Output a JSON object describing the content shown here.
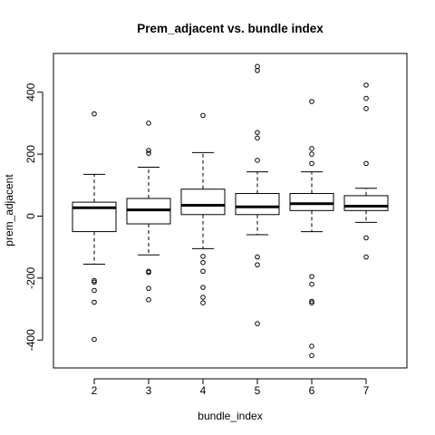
{
  "chart_data": {
    "type": "boxplot",
    "title": "Prem_adjacent vs. bundle index",
    "xlabel": "bundle_index",
    "ylabel": "prem_adjacent",
    "categories": [
      "2",
      "3",
      "4",
      "5",
      "6",
      "7"
    ],
    "ylim": [
      -490,
      525
    ],
    "yticks": [
      -400,
      -200,
      0,
      200,
      400
    ],
    "ytick_labels": [
      "-400",
      "-200",
      "0",
      "200",
      "400"
    ],
    "grid": false,
    "legend": "none",
    "colors": {
      "stroke": "#000000",
      "background": "#ffffff"
    },
    "boxes": [
      {
        "category": "2",
        "whisker_low": -155,
        "q1": -50,
        "median": 27,
        "q3": 45,
        "whisker_high": 135,
        "outliers": [
          330,
          -208,
          -213,
          -240,
          -278,
          -398
        ]
      },
      {
        "category": "3",
        "whisker_low": -125,
        "q1": -25,
        "median": 20,
        "q3": 57,
        "whisker_high": 158,
        "outliers": [
          300,
          212,
          203,
          -178,
          -182,
          -233,
          -270
        ]
      },
      {
        "category": "4",
        "whisker_low": -105,
        "q1": 5,
        "median": 35,
        "q3": 87,
        "whisker_high": 205,
        "outliers": [
          325,
          -130,
          -150,
          -178,
          -230,
          -262,
          -280
        ]
      },
      {
        "category": "5",
        "whisker_low": -60,
        "q1": 5,
        "median": 30,
        "q3": 73,
        "whisker_high": 143,
        "outliers": [
          483,
          470,
          270,
          252,
          180,
          -132,
          -157,
          -347
        ]
      },
      {
        "category": "6",
        "whisker_low": -50,
        "q1": 18,
        "median": 40,
        "q3": 73,
        "whisker_high": 143,
        "outliers": [
          370,
          218,
          200,
          170,
          -195,
          -220,
          -275,
          -280,
          -420,
          -450
        ]
      },
      {
        "category": "7",
        "whisker_low": -20,
        "q1": 18,
        "median": 32,
        "q3": 66,
        "whisker_high": 90,
        "outliers": [
          423,
          380,
          347,
          170,
          -70,
          -132
        ]
      }
    ]
  }
}
